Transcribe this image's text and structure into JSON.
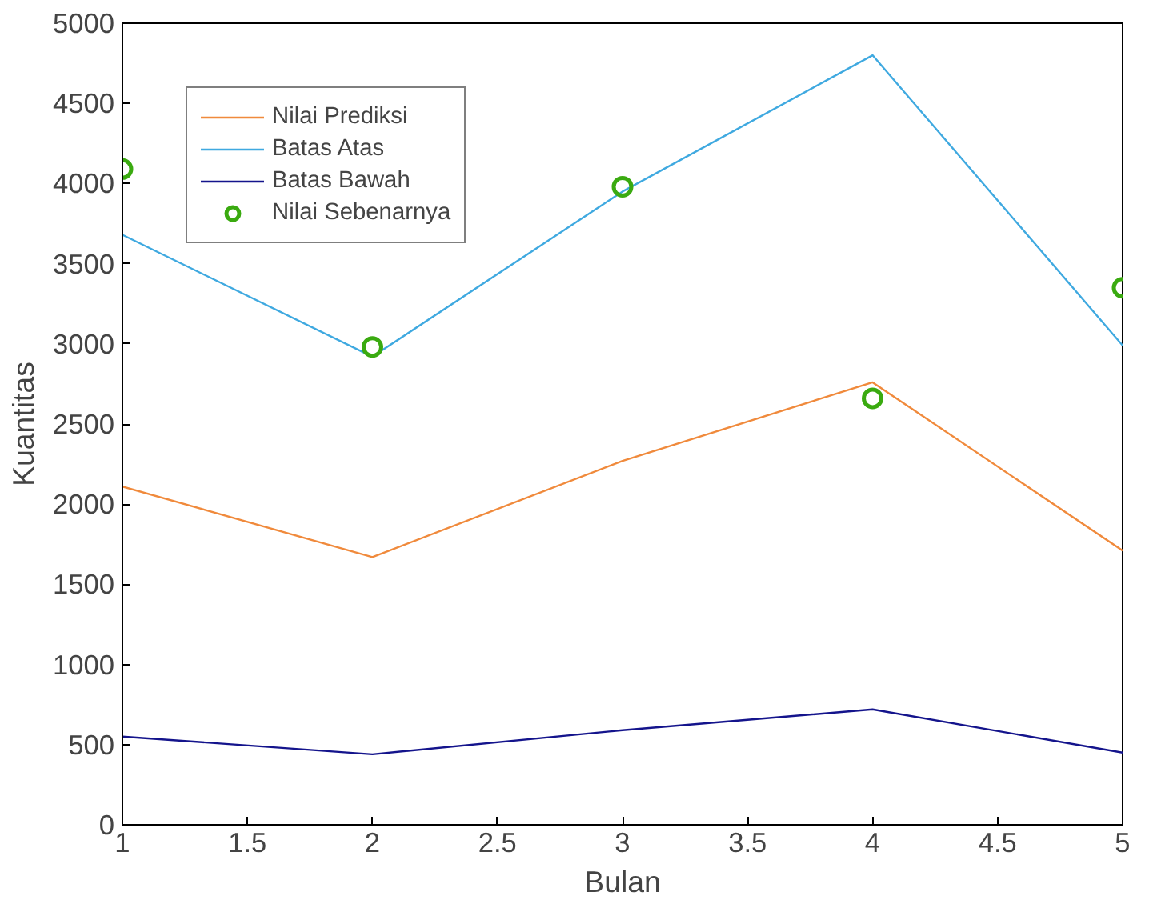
{
  "chart_data": {
    "type": "line",
    "xlabel": "Bulan",
    "ylabel": "Kuantitas",
    "x": [
      1,
      2,
      3,
      4,
      5
    ],
    "series": [
      {
        "name": "Nilai Prediksi",
        "color": "#f08a3c",
        "values": [
          2110,
          1670,
          2270,
          2760,
          1710
        ]
      },
      {
        "name": "Batas Atas",
        "color": "#3fa9e0",
        "values": [
          3680,
          2920,
          3950,
          4800,
          2990
        ]
      },
      {
        "name": "Batas Bawah",
        "color": "#14148c",
        "values": [
          550,
          440,
          590,
          720,
          450
        ]
      },
      {
        "name": "Nilai Sebenarnya",
        "type": "scatter",
        "marker": "circle",
        "color": "#3aaa10",
        "values": [
          4090,
          2980,
          3980,
          2660,
          3350
        ]
      }
    ],
    "xlim": [
      1,
      5
    ],
    "xticks": [
      1,
      1.5,
      2,
      2.5,
      3,
      3.5,
      4,
      4.5,
      5
    ],
    "ylim": [
      0,
      5000
    ],
    "yticks": [
      0,
      500,
      1000,
      1500,
      2000,
      2500,
      3000,
      3500,
      4000,
      4500,
      5000
    ],
    "grid": false,
    "legend": "top left"
  }
}
